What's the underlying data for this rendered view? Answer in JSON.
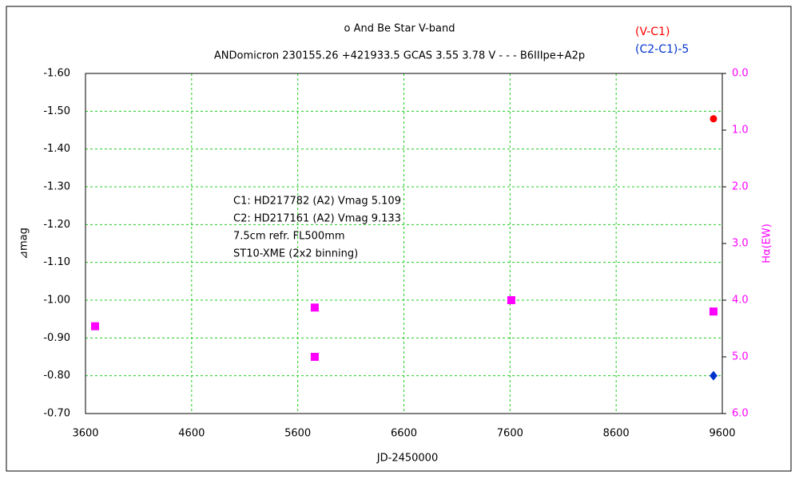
{
  "chart_data": {
    "type": "scatter",
    "title": "ο And   Be Star   V-band",
    "subtitle": "ANDomicron 230155.26 +421933.5 GCAS 3.55 3.78 V - - - B6IIIpe+A2p",
    "annotations": [
      "C1: HD217782 (A2) Vmag 5.109",
      "C2: HD217161 (A2) Vmag 9.133",
      "7.5cm refr. FL500mm",
      "ST10-XME (2x2 binning)"
    ],
    "x_label": "JD-2450000",
    "y_label": "⊿mag",
    "y2_label": "Hα(EW)",
    "xlim": [
      3600,
      9600
    ],
    "xticks": [
      3600,
      4600,
      5600,
      6600,
      7600,
      8600,
      9600
    ],
    "ylim": [
      -0.7,
      -1.6
    ],
    "yticks": [
      {
        "value": -1.6,
        "label": "-1.60"
      },
      {
        "value": -1.5,
        "label": "-1.50"
      },
      {
        "value": -1.4,
        "label": "-1.40"
      },
      {
        "value": -1.3,
        "label": "-1.30"
      },
      {
        "value": -1.2,
        "label": "-1.20"
      },
      {
        "value": -1.1,
        "label": "-1.10"
      },
      {
        "value": -1.0,
        "label": "-1.00"
      },
      {
        "value": -0.9,
        "label": "-0.90"
      },
      {
        "value": -0.8,
        "label": "-0.80"
      },
      {
        "value": -0.7,
        "label": "-0.70"
      }
    ],
    "y2lim": [
      6,
      0
    ],
    "y2ticks": [
      {
        "value": 0,
        "label": "0.0"
      },
      {
        "value": 1,
        "label": "1.0"
      },
      {
        "value": 2,
        "label": "2.0"
      },
      {
        "value": 3,
        "label": "3.0"
      },
      {
        "value": 4,
        "label": "4.0"
      },
      {
        "value": 5,
        "label": "5.0"
      },
      {
        "value": 6,
        "label": "6.0"
      }
    ],
    "grid": true,
    "series": [
      {
        "name": "(V-C1)",
        "color": "#ff0000",
        "marker": "circle",
        "x": [
          9517
        ],
        "values": [
          -1.48
        ]
      },
      {
        "name": "(C2-C1)-5",
        "color": "#0033cc",
        "marker": "diamond",
        "x": [
          9517
        ],
        "values": [
          -0.8
        ]
      },
      {
        "color": "#ff00ff",
        "marker": "square",
        "axis": "y2",
        "x": [
          3690,
          5760,
          5760,
          7612,
          9517
        ],
        "values": [
          4.46,
          4.13,
          5.0,
          4.0,
          4.2
        ]
      }
    ]
  }
}
